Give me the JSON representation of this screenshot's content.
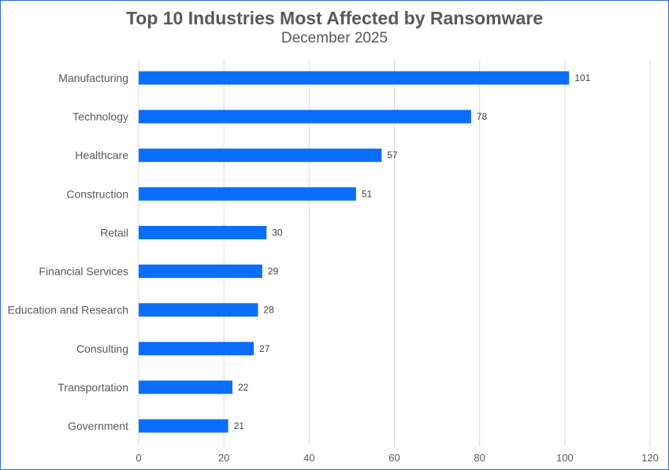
{
  "chart_data": {
    "type": "bar",
    "orientation": "horizontal",
    "title": "Top 10 Industries Most Affected by Ransomware",
    "subtitle": "December 2025",
    "categories": [
      "Manufacturing",
      "Technology",
      "Healthcare",
      "Construction",
      "Retail",
      "Financial Services",
      "Education and Research",
      "Consulting",
      "Transportation",
      "Government"
    ],
    "values": [
      101,
      78,
      57,
      51,
      30,
      29,
      28,
      27,
      22,
      21
    ],
    "value_labels": [
      "101",
      "78",
      "57",
      "51",
      "30",
      "29",
      "28",
      "27",
      "22",
      "21"
    ],
    "xlim": [
      0,
      120
    ],
    "x_ticks": [
      0,
      20,
      40,
      60,
      80,
      100,
      120
    ],
    "x_tick_labels": [
      "0",
      "20",
      "40",
      "60",
      "80",
      "100",
      "120"
    ],
    "xlabel": "",
    "ylabel": "",
    "grid": "vertical",
    "legend": "none",
    "bar_color": "#0a6efa",
    "frame_color": "#2f6fd6"
  }
}
